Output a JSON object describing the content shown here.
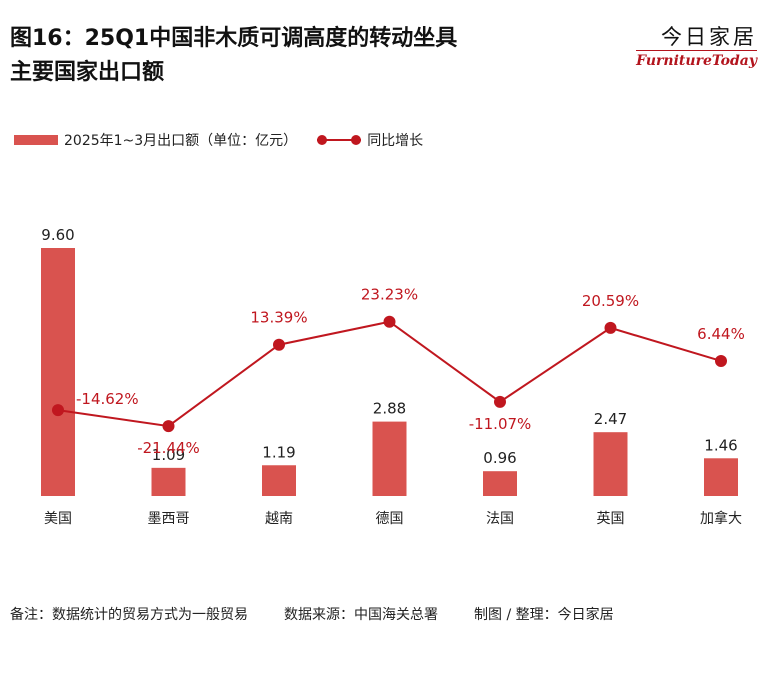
{
  "header": {
    "title_line1": "图16：25Q1中国非木质可调高度的转动坐具",
    "title_line2": "主要国家出口额",
    "brand_cn": "今日家居",
    "brand_en": "FurnitureToday"
  },
  "footer": {
    "note": "备注：数据统计的贸易方式为一般贸易",
    "source": "数据来源：中国海关总署",
    "author": "制图 / 整理：今日家居"
  },
  "chart_data": {
    "type": "bar",
    "title": "图16：25Q1中国非木质可调高度的转动坐具主要国家出口额",
    "categories": [
      "美国",
      "墨西哥",
      "越南",
      "德国",
      "法国",
      "英国",
      "加拿大"
    ],
    "series": [
      {
        "name": "2025年1~3月出口额（单位：亿元）",
        "type": "bar",
        "axis": "left",
        "values": [
          9.6,
          1.09,
          1.19,
          2.88,
          0.96,
          2.47,
          1.46
        ],
        "labels": [
          "9.60",
          "1.09",
          "1.19",
          "2.88",
          "0.96",
          "2.47",
          "1.46"
        ]
      },
      {
        "name": "同比增长",
        "type": "line",
        "axis": "right",
        "values": [
          -14.62,
          -21.44,
          13.39,
          23.23,
          -11.07,
          20.59,
          6.44
        ],
        "labels": [
          "-14.62%",
          "-21.44%",
          "13.39%",
          "23.23%",
          "-11.07%",
          "20.59%",
          "6.44%"
        ]
      }
    ],
    "ylim_left": [
      0,
      10
    ],
    "ylim_right": [
      -50,
      50
    ],
    "grid": false,
    "legend_position": "top-left",
    "colors": {
      "bar": "#d9534f",
      "line": "#c0171f",
      "line_label": "#c0171f"
    }
  }
}
